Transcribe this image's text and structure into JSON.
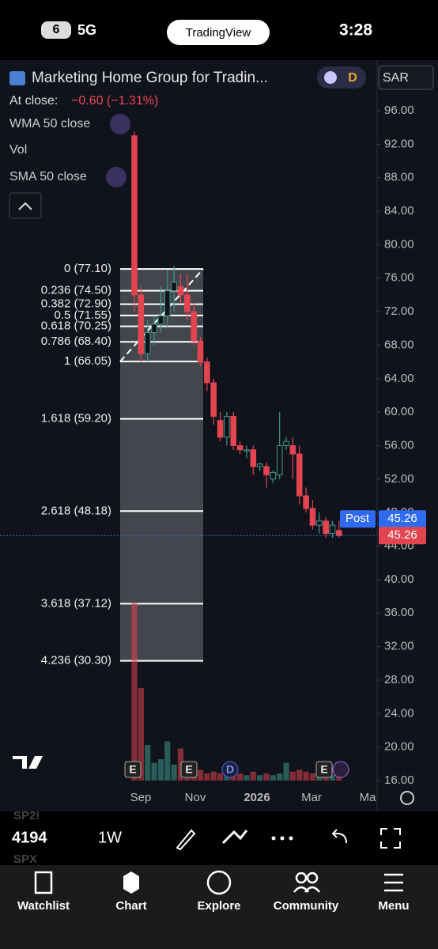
{
  "status_bar": {
    "badge": "6",
    "network": "5G",
    "app": "TradingView",
    "time": "3:28"
  },
  "header": {
    "title": "Marketing Home Group for Tradin...",
    "theme_badge": "D",
    "currency": "SAR"
  },
  "legend": {
    "close_label": "At close:",
    "change": "−0.60 (−1.31%)",
    "indicators": [
      "WMA 50 close",
      "Vol",
      "SMA 50 close"
    ]
  },
  "chart_data": {
    "type": "candlestick",
    "up_color": "#3e9a8c",
    "down_color": "#e2454f",
    "fib_color": "#ffffff",
    "ylim": [
      15.8,
      97.5
    ],
    "yticks": [
      {
        "value": 96,
        "label": "96.00"
      },
      {
        "value": 92,
        "label": "92.00"
      },
      {
        "value": 88,
        "label": "88.00"
      },
      {
        "value": 84,
        "label": "84.00"
      },
      {
        "value": 80,
        "label": "80.00"
      },
      {
        "value": 76,
        "label": "76.00"
      },
      {
        "value": 72,
        "label": "72.00"
      },
      {
        "value": 68,
        "label": "68.00"
      },
      {
        "value": 64,
        "label": "64.00"
      },
      {
        "value": 60,
        "label": "60.00"
      },
      {
        "value": 56,
        "label": "56.00"
      },
      {
        "value": 52,
        "label": "52.00"
      },
      {
        "value": 48,
        "label": "48.00"
      },
      {
        "value": 44,
        "label": "44.00"
      },
      {
        "value": 40,
        "label": "40.00"
      },
      {
        "value": 36,
        "label": "36.00"
      },
      {
        "value": 32,
        "label": "32.00"
      },
      {
        "value": 28,
        "label": "28.00"
      },
      {
        "value": 24,
        "label": "24.00"
      },
      {
        "value": 20,
        "label": "20.00"
      },
      {
        "value": 16,
        "label": "16.00"
      }
    ],
    "x_labels": [
      "Sep",
      "Nov",
      "2026",
      "Mar",
      "Ma"
    ],
    "open": [
      93,
      74,
      67,
      69.5,
      70.5,
      71.5,
      74.5,
      75,
      74,
      72,
      68.5,
      66,
      63.5,
      59,
      57,
      59.5,
      56,
      55.5,
      55.5,
      53.5,
      53.5,
      52,
      52.5,
      56,
      56,
      55,
      50,
      48.5,
      46.5,
      47,
      45.5,
      45.86
    ],
    "high": [
      93.5,
      75,
      71,
      71.5,
      75,
      77,
      77.5,
      76.5,
      76.5,
      73,
      69,
      66.5,
      64,
      60,
      60,
      60,
      56.5,
      56,
      56,
      54,
      54,
      53,
      60,
      57,
      57,
      56,
      51,
      49.5,
      48,
      47.5,
      47,
      47
    ],
    "low": [
      72,
      66,
      66,
      68,
      69.5,
      70,
      72,
      73,
      71,
      68,
      65.5,
      62.5,
      58.5,
      56.5,
      56,
      55.5,
      55,
      54.5,
      52.5,
      53,
      51,
      51.5,
      52,
      55.5,
      52,
      49,
      48,
      46,
      45.5,
      45,
      45,
      45
    ],
    "close": [
      74,
      67,
      69.5,
      70.5,
      71.5,
      74.5,
      75.5,
      74,
      72,
      68.5,
      66,
      63.5,
      59.5,
      57,
      59.5,
      56,
      55.5,
      55.5,
      53.5,
      53.8,
      52.5,
      52.8,
      56,
      56.5,
      55,
      50,
      48.5,
      46.5,
      47,
      45.5,
      46.5,
      45.26
    ],
    "volume": [
      100,
      52,
      20,
      10,
      12,
      22,
      9,
      18,
      6,
      5,
      6,
      4,
      5,
      4,
      5,
      4,
      4,
      3,
      5,
      3,
      4,
      3,
      4,
      10,
      5,
      6,
      5,
      4,
      6,
      4,
      3,
      4
    ],
    "fib_levels": [
      {
        "value": 77.1,
        "label": "0 (77.10)"
      },
      {
        "value": 74.5,
        "label": "0.236 (74.50)"
      },
      {
        "value": 72.9,
        "label": "0.382 (72.90)"
      },
      {
        "value": 71.55,
        "label": "0.5 (71.55)"
      },
      {
        "value": 70.25,
        "label": "0.618 (70.25)"
      },
      {
        "value": 68.4,
        "label": "0.786 (68.40)"
      },
      {
        "value": 66.05,
        "label": "1 (66.05)"
      },
      {
        "value": 59.2,
        "label": "1.618 (59.20)"
      },
      {
        "value": 48.18,
        "label": "2.618 (48.18)"
      },
      {
        "value": 37.12,
        "label": "3.618 (37.12)"
      },
      {
        "value": 30.3,
        "label": "4.236 (30.30)"
      }
    ],
    "post_label": "Post",
    "post_price": 45.26,
    "last_price": 45.26,
    "events": [
      "E",
      "E",
      "D",
      "E"
    ]
  },
  "toolbar": {
    "symbol_above": "SP2!",
    "price": "4194",
    "symbol_below": "SPX",
    "interval": "1W"
  },
  "nav": [
    "Watchlist",
    "Chart",
    "Explore",
    "Community",
    "Menu"
  ]
}
